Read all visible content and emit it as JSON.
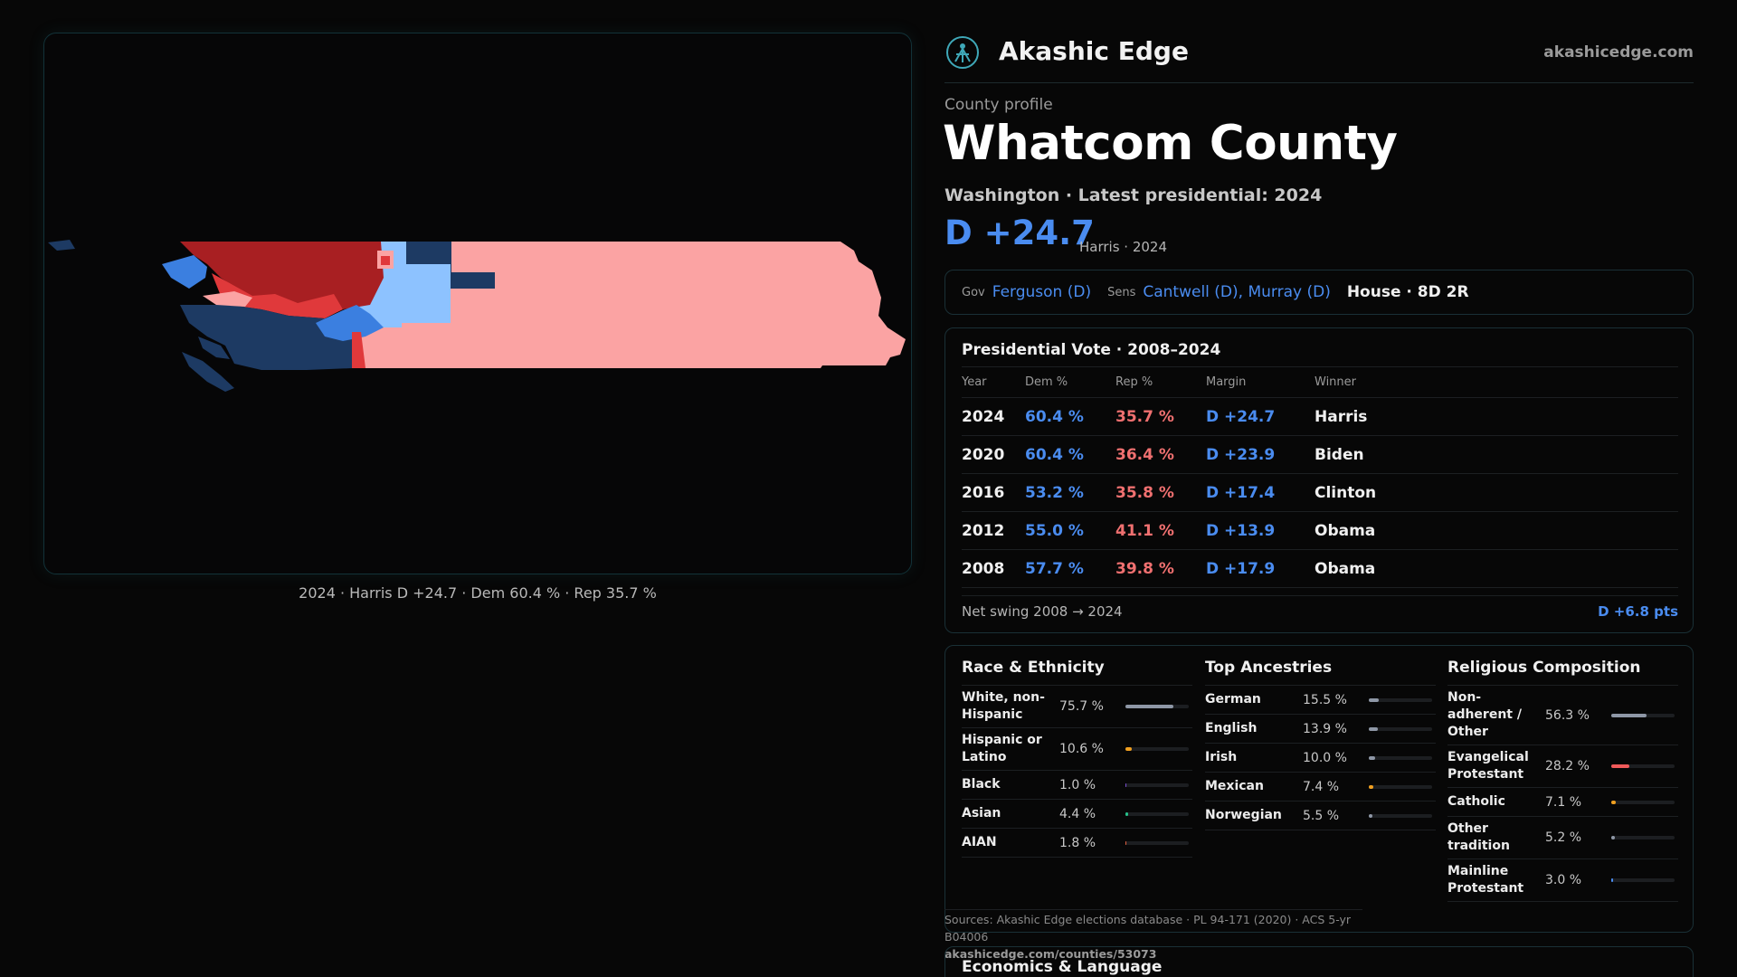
{
  "brand": {
    "name": "Akashic Edge",
    "url": "akashicedge.com",
    "logo": "akashic-logo-icon"
  },
  "profile": {
    "kicker": "County profile",
    "title": "Whatcom County",
    "subtitle": "Washington · Latest presidential: 2024",
    "margin": "D +24.7",
    "margin_note": "Harris · 2024"
  },
  "officials": {
    "gov_label": "Gov",
    "gov": "Ferguson (D)",
    "sens_label": "Sens",
    "sens": "Cantwell (D), Murray (D)",
    "house": "House · 8D 2R"
  },
  "map": {
    "caption": "2024 · Harris D +24.7 · Dem 60.4 % · Rep 35.7 %",
    "colors": {
      "strong_rep": "#a81f22",
      "lean_rep": "#e0393b",
      "tilt_rep": "#fba3a3",
      "strong_dem": "#1d3a63",
      "lean_dem": "#3b7fe0",
      "tilt_dem": "#8dc2ff"
    }
  },
  "presidential": {
    "title": "Presidential Vote · 2008–2024",
    "headers": {
      "year": "Year",
      "dem": "Dem %",
      "rep": "Rep %",
      "margin": "Margin",
      "winner": "Winner"
    },
    "rows": [
      {
        "year": "2024",
        "dem": "60.4 %",
        "rep": "35.7 %",
        "margin": "D +24.7",
        "winner": "Harris"
      },
      {
        "year": "2020",
        "dem": "60.4 %",
        "rep": "36.4 %",
        "margin": "D +23.9",
        "winner": "Biden"
      },
      {
        "year": "2016",
        "dem": "53.2 %",
        "rep": "35.8 %",
        "margin": "D +17.4",
        "winner": "Clinton"
      },
      {
        "year": "2012",
        "dem": "55.0 %",
        "rep": "41.1 %",
        "margin": "D +13.9",
        "winner": "Obama"
      },
      {
        "year": "2008",
        "dem": "57.7 %",
        "rep": "39.8 %",
        "margin": "D +17.9",
        "winner": "Obama"
      }
    ],
    "swing_label": "Net swing 2008 → 2024",
    "swing_value": "D +6.8 pts"
  },
  "race": {
    "title": "Race & Ethnicity",
    "rows": [
      {
        "name": "White, non-Hispanic",
        "value": "75.7 %",
        "pct": 75.7,
        "color": "#8e97a6"
      },
      {
        "name": "Hispanic or Latino",
        "value": "10.6 %",
        "pct": 10.6,
        "color": "#f0a020"
      },
      {
        "name": "Black",
        "value": "1.0 %",
        "pct": 1.0,
        "color": "#7a4fd0"
      },
      {
        "name": "Asian",
        "value": "4.4 %",
        "pct": 4.4,
        "color": "#27c08a"
      },
      {
        "name": "AIAN",
        "value": "1.8 %",
        "pct": 1.8,
        "color": "#e06040"
      }
    ]
  },
  "ancestry": {
    "title": "Top Ancestries",
    "rows": [
      {
        "name": "German",
        "value": "15.5 %",
        "pct": 15.5,
        "color": "#8e97a6"
      },
      {
        "name": "English",
        "value": "13.9 %",
        "pct": 13.9,
        "color": "#8e97a6"
      },
      {
        "name": "Irish",
        "value": "10.0 %",
        "pct": 10.0,
        "color": "#8e97a6"
      },
      {
        "name": "Mexican",
        "value": "7.4 %",
        "pct": 7.4,
        "color": "#f0a020"
      },
      {
        "name": "Norwegian",
        "value": "5.5 %",
        "pct": 5.5,
        "color": "#8e97a6"
      }
    ]
  },
  "religion": {
    "title": "Religious Composition",
    "rows": [
      {
        "name": "Non-adherent / Other",
        "value": "56.3 %",
        "pct": 56.3,
        "color": "#8e97a6"
      },
      {
        "name": "Evangelical Protestant",
        "value": "28.2 %",
        "pct": 28.2,
        "color": "#f05a5a"
      },
      {
        "name": "Catholic",
        "value": "7.1 %",
        "pct": 7.1,
        "color": "#f0a020"
      },
      {
        "name": "Other tradition",
        "value": "5.2 %",
        "pct": 5.2,
        "color": "#8e97a6"
      },
      {
        "name": "Mainline Protestant",
        "value": "3.0 %",
        "pct": 3.0,
        "color": "#4a8cf0"
      }
    ]
  },
  "sources": {
    "text": "Sources: Akashic Edge elections database · PL 94-171 (2020) · ACS 5-yr B04006",
    "url": "akashicedge.com/counties/53073"
  },
  "economics": {
    "title": "Economics & Language"
  }
}
